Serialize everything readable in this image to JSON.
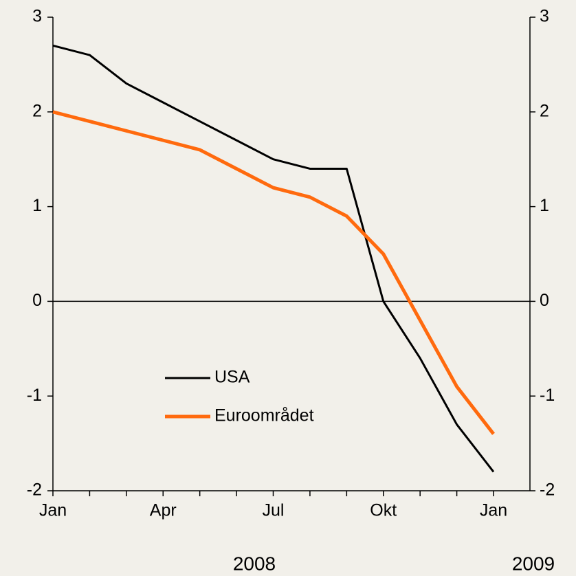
{
  "chart_data": {
    "type": "line",
    "categories": [
      "Jan",
      null,
      null,
      "Apr",
      null,
      null,
      "Jul",
      null,
      null,
      "Okt",
      null,
      null,
      "Jan"
    ],
    "x_group_labels": [
      "2008",
      "2009"
    ],
    "series": [
      {
        "name": "USA",
        "color": "#000000",
        "values": [
          2.7,
          2.6,
          2.3,
          2.1,
          1.9,
          1.7,
          1.5,
          1.4,
          1.4,
          0,
          -0.6,
          -1.3,
          -1.8
        ]
      },
      {
        "name": "Euroområdet",
        "color": "#ff6a0e",
        "values": [
          2.0,
          1.9,
          1.8,
          1.7,
          1.6,
          1.4,
          1.2,
          1.1,
          0.9,
          0.5,
          -0.2,
          -0.9,
          -1.4
        ]
      }
    ],
    "ylim": [
      -2,
      3
    ],
    "yticks": [
      -2,
      -1,
      0,
      1,
      2,
      3
    ]
  }
}
